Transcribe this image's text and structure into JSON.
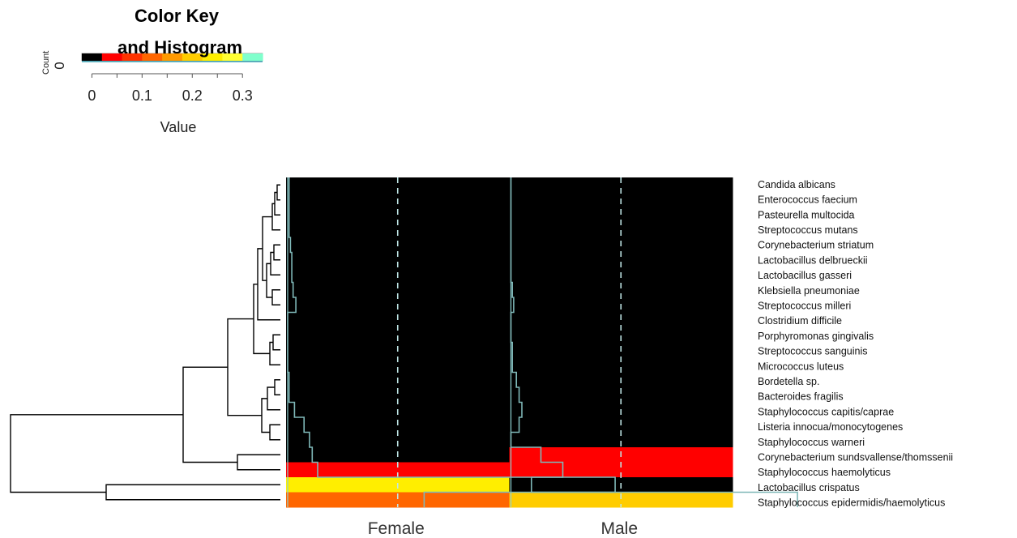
{
  "color_key": {
    "title_line1": "Color Key",
    "title_line2": "and Histogram",
    "count_label": "Count",
    "count_zero": "0",
    "ticks": [
      "0",
      "0.1",
      "0.2",
      "0.3"
    ],
    "tick_values": [
      0,
      0.1,
      0.2,
      0.3
    ],
    "value_label": "Value",
    "range": [
      -0.02,
      0.34
    ],
    "palette": [
      "#000000",
      "#ff0000",
      "#ff3300",
      "#ff6600",
      "#ff9900",
      "#ffcc00",
      "#ffee00",
      "#ffff33",
      "#80ffcc"
    ]
  },
  "chart_data": {
    "type": "heatmap",
    "columns": [
      "Female",
      "Male"
    ],
    "rows": [
      "Candida albicans",
      "Enterococcus faecium",
      "Pasteurella multocida",
      "Streptococcus mutans",
      "Corynebacterium striatum",
      "Lactobacillus delbrueckii",
      "Lactobacillus gasseri",
      "Klebsiella pneumoniae",
      "Streptococcus milleri",
      "Clostridium difficile",
      "Porphyromonas gingivalis",
      "Streptococcus sanguinis",
      "Micrococcus luteus",
      "Bordetella sp.",
      "Bacteroides fragilis",
      "Staphylococcus capitis/caprae",
      "Listeria innocua/monocytogenes",
      "Staphylococcus warneri",
      "Corynebacterium sundsvallense/thomssenii",
      "Staphylococcus haemolyticus",
      "Lactobacillus crispatus",
      "Staphylococcus epidermidis/haemolyticus"
    ],
    "values": [
      [
        0.001,
        0.0
      ],
      [
        0.001,
        0.0
      ],
      [
        0.001,
        0.0
      ],
      [
        0.001,
        0.0
      ],
      [
        0.002,
        0.0
      ],
      [
        0.003,
        0.0
      ],
      [
        0.003,
        0.0
      ],
      [
        0.004,
        0.001
      ],
      [
        0.006,
        0.002
      ],
      [
        0.0,
        0.0
      ],
      [
        0.0,
        0.0
      ],
      [
        0.0,
        0.001
      ],
      [
        0.0,
        0.001
      ],
      [
        0.001,
        0.004
      ],
      [
        0.001,
        0.006
      ],
      [
        0.005,
        0.008
      ],
      [
        0.012,
        0.006
      ],
      [
        0.016,
        0.0
      ],
      [
        0.018,
        0.022
      ],
      [
        0.022,
        0.038
      ],
      [
        0.24,
        0.015
      ],
      [
        0.1,
        0.21
      ]
    ],
    "color_range": [
      -0.02,
      0.34
    ],
    "trace_color": "#80ffff",
    "centre_line_style": "dashed",
    "dendrogram": "rows",
    "title": "",
    "xlabel": "",
    "ylabel": ""
  }
}
